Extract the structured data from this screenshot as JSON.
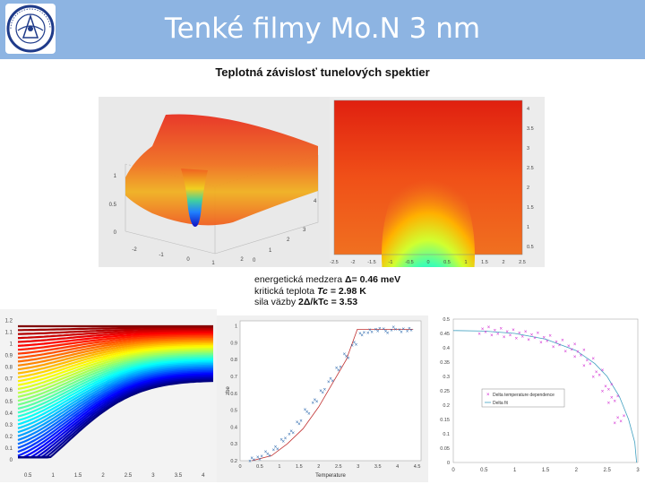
{
  "slide": {
    "title": "Tenké filmy Mo.N 3 nm",
    "subtitle": "Teplotná závislosť tunelových spektier"
  },
  "colors": {
    "header_bg": "#8db4e2",
    "title_text": "#ffffff",
    "logo_ring": "#1f3b8a"
  },
  "logo": {
    "icon": "institution-seal-logo",
    "ring_text": "CENTRUM NIZKYCH TEPLOT"
  },
  "params": {
    "line1_label": "energetická medzera ",
    "line1_symbol": "Δ",
    "line1_value": "= 0.46 meV",
    "line2_label": "kritická teplota ",
    "line2_symbol": "Tc",
    "line2_value": " = 2.98 K",
    "line3_label": "sila väzby ",
    "line3_symbol": "2Δ/kTc",
    "line3_value": " = 3.53"
  },
  "chart_data": [
    {
      "type": "surface",
      "ticks": {
        "z": [
          "0",
          "0.5",
          "1"
        ],
        "x": [
          "-2",
          "-1",
          "0",
          "1",
          "2"
        ],
        "y": [
          "0",
          "1",
          "2",
          "3",
          "4"
        ]
      }
    },
    {
      "type": "heatmap",
      "colormap": "jet",
      "x_ticks": [
        "-2.5",
        "-2",
        "-1.5",
        "-1",
        "-0.5",
        "0",
        "0.5",
        "1",
        "1.5",
        "2",
        "2.5"
      ],
      "y_ticks": [
        "0.5",
        "1",
        "1.5",
        "2",
        "2.5",
        "3",
        "3.5",
        "4"
      ],
      "xlim": [
        -2.5,
        2.5
      ],
      "ylim": [
        0.3,
        4.2
      ],
      "zero_bias_dip_closes_at": 3.0
    },
    {
      "type": "line",
      "colormap": "jet",
      "x_ticks": [
        "0.5",
        "1",
        "1.5",
        "2",
        "2.5",
        "3",
        "3.5",
        "4"
      ],
      "y_ticks": [
        "0",
        "0.1",
        "0.2",
        "0.3",
        "0.4",
        "0.5",
        "0.6",
        "0.7",
        "0.8",
        "0.9",
        "1",
        "1.1",
        "1.2"
      ],
      "xlim": [
        0.3,
        4.2
      ],
      "ylim": [
        0,
        1.25
      ]
    },
    {
      "type": "scatter",
      "xlabel": "Temperature",
      "ylabel": "zbe",
      "x_ticks": [
        "0",
        "0.5",
        "1",
        "1.5",
        "2",
        "2.5",
        "3",
        "3.5",
        "4",
        "4.5"
      ],
      "y_ticks": [
        "0.2",
        "0.3",
        "0.4",
        "0.5",
        "0.6",
        "0.7",
        "0.8",
        "0.9",
        "1"
      ],
      "xlim": [
        0,
        4.6
      ],
      "ylim": [
        0.2,
        1.03
      ],
      "series": [
        {
          "kind": "points",
          "x": [
            0.3,
            0.5,
            0.7,
            0.9,
            1.1,
            1.3,
            1.5,
            1.7,
            1.9,
            2.1,
            2.3,
            2.5,
            2.7,
            2.9,
            3.1,
            3.3,
            3.5,
            3.7,
            3.9,
            4.1,
            4.3
          ],
          "y": [
            0.21,
            0.22,
            0.24,
            0.27,
            0.32,
            0.37,
            0.43,
            0.49,
            0.55,
            0.61,
            0.68,
            0.75,
            0.82,
            0.89,
            0.95,
            0.97,
            0.98,
            0.97,
            0.98,
            0.97,
            0.98
          ]
        },
        {
          "kind": "fit",
          "x": [
            0.3,
            0.8,
            1.2,
            1.6,
            2.0,
            2.4,
            2.7,
            2.98,
            3.3,
            3.8,
            4.4
          ],
          "y": [
            0.2,
            0.23,
            0.3,
            0.39,
            0.52,
            0.68,
            0.8,
            0.98,
            0.98,
            0.98,
            0.98
          ]
        }
      ]
    },
    {
      "type": "scatter",
      "x_ticks": [
        "0",
        "0.5",
        "1",
        "1.5",
        "2",
        "2.5",
        "3"
      ],
      "y_ticks": [
        "0",
        "0.05",
        "0.1",
        "0.15",
        "0.2",
        "0.25",
        "0.3",
        "0.35",
        "0.4",
        "0.45",
        "0.5"
      ],
      "xlim": [
        0,
        3
      ],
      "ylim": [
        0,
        0.5
      ],
      "legend_position": "center-right",
      "series": [
        {
          "name": "Delta temperature dependence",
          "kind": "points",
          "color": "#d020d0",
          "x": [
            0.5,
            0.7,
            0.9,
            1.1,
            1.3,
            1.5,
            1.7,
            1.9,
            2.05,
            2.2,
            2.35,
            2.5,
            2.6,
            2.7
          ],
          "y": [
            0.46,
            0.455,
            0.45,
            0.445,
            0.44,
            0.43,
            0.415,
            0.4,
            0.38,
            0.35,
            0.31,
            0.26,
            0.22,
            0.15
          ]
        },
        {
          "name": "Delta fit",
          "kind": "fit",
          "color": "#40a0c0",
          "x": [
            0,
            0.5,
            1.0,
            1.5,
            2.0,
            2.3,
            2.5,
            2.7,
            2.85,
            2.95,
            2.98
          ],
          "y": [
            0.46,
            0.458,
            0.45,
            0.43,
            0.39,
            0.345,
            0.3,
            0.23,
            0.15,
            0.07,
            0
          ]
        }
      ]
    }
  ]
}
